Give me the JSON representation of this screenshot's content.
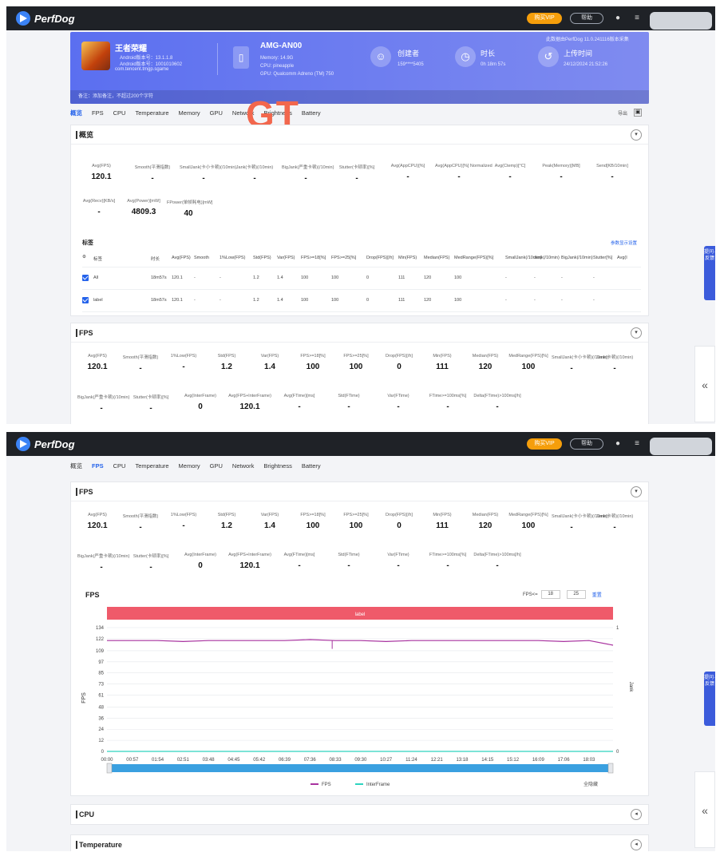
{
  "app": {
    "name": "PerfDog",
    "upgrade_label": "购买VIP",
    "feedback_label": "帮助"
  },
  "overlay_text": "GT",
  "banner": {
    "game_name": "王者荣耀",
    "game_lines": [
      "Android版本号：13.1.1.8",
      "Android版本号：1001010602",
      "com.tencent.tmgp.sgame"
    ],
    "device_name": "AMG-AN00",
    "device_lines": [
      "Memory: 14.9G",
      "CPU: pineapple",
      "GPU: Qualcomm Adreno (TM) 750"
    ],
    "creator_label": "创建者",
    "creator_value": "159****5405",
    "duration_label": "时长",
    "duration_value": "0h 18m 57s",
    "upload_label": "上传时间",
    "upload_value": "24/12/2024 21:52:26",
    "top_note": "此数据由PerfDog 11.0.241116版本采集",
    "footer_note": "备注：添加备注，不超过200个字符"
  },
  "tabs1": [
    "概览",
    "FPS",
    "CPU",
    "Temperature",
    "Memory",
    "GPU",
    "Network",
    "Brightness",
    "Battery"
  ],
  "tabs2": [
    "概览",
    "FPS",
    "CPU",
    "Temperature",
    "Memory",
    "GPU",
    "Network",
    "Brightness",
    "Battery"
  ],
  "tab_right": "导出",
  "overview": {
    "title": "概览",
    "metrics": [
      {
        "label": "Avg(FPS)",
        "value": "120.1"
      },
      {
        "label": "Smooth(平滑指数)",
        "value": "-"
      },
      {
        "label": "SmallJank(卡小卡顿)(/10min)",
        "value": "-"
      },
      {
        "label": "Jank(卡顿)(/10min)",
        "value": "-"
      },
      {
        "label": "BigJank(严重卡顿)(/10min)",
        "value": "-"
      },
      {
        "label": "Stutter(卡顿率)[%]",
        "value": "-"
      },
      {
        "label": "Avg(AppCPU)[%]",
        "value": "-"
      },
      {
        "label": "Avg(AppCPU)[%] Normalized",
        "value": "-"
      },
      {
        "label": "Avg(Ctemp)[°C]",
        "value": "-"
      },
      {
        "label": "Peak(Memory)[MB]",
        "value": "-"
      },
      {
        "label": "Send[KB/10min]",
        "value": "-"
      }
    ],
    "metrics2": [
      {
        "label": "Avg(Recv)[KB/s]",
        "value": "-"
      },
      {
        "label": "Avg(Power)[mW]",
        "value": "4809.3"
      },
      {
        "label": "FPower(单帧耗电)[mW]",
        "value": "40"
      }
    ],
    "labels_title": "标签",
    "labels_link": "参数显示设置",
    "table_headers": [
      "标签",
      "时长",
      "Avg(FPS)",
      "Smooth",
      "1%Low(FPS)",
      "Std(FPS)",
      "Var(FPS)",
      "FPS>=18[%]",
      "FPS>=25[%]",
      "Drop(FPS)[/h]",
      "Min(FPS)",
      "Median(FPS)",
      "MedRange(FPS)[%]",
      "SmallJank(/10min)",
      "Jank(/10min)",
      "BigJank(/10min)",
      "Stutter[%]",
      "Avg(I"
    ],
    "table_rows": [
      [
        "All",
        "18m57s",
        "120.1",
        "-",
        "-",
        "1.2",
        "1.4",
        "100",
        "100",
        "0",
        "111",
        "120",
        "100",
        "-",
        "-",
        "-",
        "-"
      ],
      [
        "label",
        "18m57s",
        "120.1",
        "-",
        "-",
        "1.2",
        "1.4",
        "100",
        "100",
        "0",
        "111",
        "120",
        "100",
        "-",
        "-",
        "-",
        "-"
      ]
    ]
  },
  "fps_panel": {
    "title": "FPS",
    "row1": [
      {
        "label": "Avg(FPS)",
        "value": "120.1"
      },
      {
        "label": "Smooth(平滑指数)",
        "value": "-"
      },
      {
        "label": "1%Low(FPS)",
        "value": "-"
      },
      {
        "label": "Std(FPS)",
        "value": "1.2"
      },
      {
        "label": "Var(FPS)",
        "value": "1.4"
      },
      {
        "label": "FPS>=18[%]",
        "value": "100"
      },
      {
        "label": "FPS>=25[%]",
        "value": "100"
      },
      {
        "label": "Drop(FPS)[/h]",
        "value": "0"
      },
      {
        "label": "Min(FPS)",
        "value": "111"
      },
      {
        "label": "Median(FPS)",
        "value": "120"
      },
      {
        "label": "MedRange(FPS)[%]",
        "value": "100"
      },
      {
        "label": "SmallJank(卡小卡顿)(/10min)",
        "value": "-"
      },
      {
        "label": "Jank(卡顿)(/10min)",
        "value": "-"
      }
    ],
    "row2": [
      {
        "label": "BigJank(严重卡顿)(/10min)",
        "value": "-"
      },
      {
        "label": "Stutter(卡顿率)[%]",
        "value": "-"
      },
      {
        "label": "Avg(InterFrame)",
        "value": "0"
      },
      {
        "label": "Avg(FPS+InterFrame)",
        "value": "120.1"
      },
      {
        "label": "Avg(FTime)[ms]",
        "value": "-"
      },
      {
        "label": "Std(FTime)",
        "value": "-"
      },
      {
        "label": "Var(FTime)",
        "value": "-"
      },
      {
        "label": "FTime>=100ms[%]",
        "value": "-"
      },
      {
        "label": "Delta(FTime)>100ms[/h]",
        "value": "-"
      }
    ]
  },
  "chart_panel": {
    "title": "FPS",
    "threshold_label": "FPS<=",
    "threshold_values": [
      "18",
      "25"
    ],
    "reset_label": "重置",
    "label_bar": "label",
    "zoom_label": "全隐藏"
  },
  "chart_data": {
    "type": "line",
    "title": "FPS",
    "xlabel": "",
    "ylabel": "FPS",
    "y2label": "Jank",
    "y2_ticks": [
      "1",
      "0"
    ],
    "ylim": [
      0,
      134
    ],
    "yticks": [
      "134",
      "122",
      "109",
      "97",
      "85",
      "73",
      "61",
      "48",
      "36",
      "24",
      "12",
      "0"
    ],
    "x_ticks": [
      "00:00",
      "00:57",
      "01:54",
      "02:51",
      "03:48",
      "04:45",
      "05:42",
      "06:39",
      "07:36",
      "08:33",
      "09:30",
      "10:27",
      "11:24",
      "12:21",
      "13:18",
      "14:15",
      "15:12",
      "16:09",
      "17:06",
      "18:03"
    ],
    "x_seconds": [
      0,
      57,
      114,
      171,
      228,
      285,
      342,
      399,
      456,
      513,
      570,
      627,
      684,
      741,
      798,
      855,
      912,
      969,
      1026,
      1083,
      1137
    ],
    "series": [
      {
        "name": "FPS",
        "color": "#a8329f",
        "values": [
          120,
          120,
          120,
          119,
          120,
          120,
          120,
          120,
          121,
          120,
          120,
          119,
          120,
          120,
          120,
          120,
          120,
          120,
          119,
          120,
          115
        ]
      },
      {
        "name": "InterFrame",
        "color": "#2dd4bf",
        "values": [
          0,
          0,
          0,
          0,
          0,
          0,
          0,
          0,
          0,
          0,
          0,
          0,
          0,
          0,
          0,
          0,
          0,
          0,
          0,
          0,
          0
        ]
      }
    ],
    "min_dip": {
      "x_seconds": 506,
      "value": 111
    },
    "grid": true,
    "legend_position": "bottom"
  },
  "cpu_title": "CPU",
  "temp_title": "Temperature",
  "side_tab_text": "提问·反馈",
  "collapse_glyph": "«"
}
